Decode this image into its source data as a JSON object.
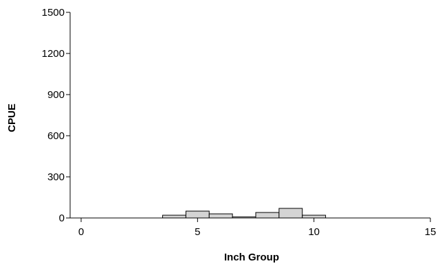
{
  "chart_data": {
    "type": "bar",
    "title": "",
    "xlabel": "Inch Group",
    "ylabel": "CPUE",
    "xlim": [
      0,
      15
    ],
    "ylim": [
      0,
      1500
    ],
    "x_ticks": [
      "0",
      "5",
      "10",
      "15"
    ],
    "y_ticks": [
      "0",
      "300",
      "600",
      "900",
      "1200",
      "1500"
    ],
    "bin_width": 1,
    "bars": [
      {
        "x": 4,
        "value": 20
      },
      {
        "x": 5,
        "value": 50
      },
      {
        "x": 6,
        "value": 30
      },
      {
        "x": 7,
        "value": 8
      },
      {
        "x": 8,
        "value": 40
      },
      {
        "x": 9,
        "value": 70
      },
      {
        "x": 10,
        "value": 20
      }
    ],
    "grid": false,
    "colors": {
      "bar_fill": "#d4d4d4",
      "bar_stroke": "#000000"
    }
  }
}
